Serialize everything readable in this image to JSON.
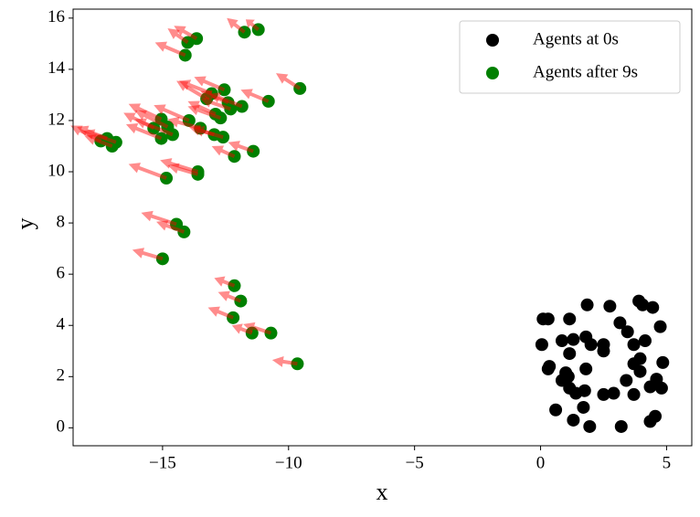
{
  "chart_data": {
    "type": "scatter",
    "xlabel": "x",
    "ylabel": "y",
    "xlim": [
      -18.55,
      6.0
    ],
    "ylim": [
      -0.7,
      16.35
    ],
    "xticks": [
      {
        "value": -15,
        "label": "−15"
      },
      {
        "value": -10,
        "label": "−10"
      },
      {
        "value": -5,
        "label": "−5"
      },
      0,
      5
    ],
    "yticks": [
      0,
      2,
      4,
      6,
      8,
      10,
      12,
      14,
      16
    ],
    "legend": "upper right",
    "series": [
      {
        "name": "Agents at 0s",
        "color": "#000000",
        "x": [
          0.1,
          0.3,
          0.05,
          0.35,
          0.3,
          0.6,
          0.85,
          1.15,
          1.85,
          2.75,
          3.9,
          4.05,
          4.45,
          4.75,
          3.15,
          3.45,
          4.15,
          1.8,
          2.0,
          1.3,
          1.15,
          2.5,
          2.5,
          3.7,
          3.95,
          3.7,
          4.85,
          1.8,
          1.0,
          1.1,
          0.85,
          3.95,
          4.6,
          3.4,
          1.15,
          1.4,
          1.75,
          2.5,
          2.9,
          3.7,
          4.35,
          4.8,
          1.7,
          1.3,
          1.95,
          3.2,
          4.35,
          4.55
        ],
        "values": [
          4.25,
          4.25,
          3.25,
          2.4,
          2.3,
          0.7,
          3.4,
          4.25,
          4.8,
          4.75,
          4.95,
          4.8,
          4.7,
          3.95,
          4.1,
          3.75,
          3.4,
          3.55,
          3.25,
          3.45,
          2.9,
          3.25,
          3.0,
          3.25,
          2.7,
          2.5,
          2.55,
          2.3,
          2.15,
          2.0,
          1.85,
          2.2,
          1.9,
          1.85,
          1.55,
          1.35,
          1.45,
          1.3,
          1.35,
          1.3,
          1.6,
          1.55,
          0.8,
          0.3,
          0.05,
          0.05,
          0.25,
          0.45
        ]
      },
      {
        "name": "Agents after 9s",
        "color": "#008000",
        "x": [
          -11.2,
          -11.75,
          -13.65,
          -14.0,
          -14.1,
          -9.55,
          -10.8,
          -12.55,
          -13.05,
          -13.25,
          -12.4,
          -11.85,
          -12.3,
          -12.9,
          -12.7,
          -13.95,
          -15.05,
          -15.35,
          -13.5,
          -14.8,
          -15.05,
          -14.6,
          -12.95,
          -12.6,
          -17.45,
          -17.2,
          -16.85,
          -17.0,
          -11.4,
          -12.15,
          -13.6,
          -13.6,
          -14.85,
          -14.45,
          -14.15,
          -15.0,
          -12.15,
          -11.9,
          -12.2,
          -10.7,
          -11.45,
          -9.65
        ],
        "values": [
          15.55,
          15.45,
          15.2,
          15.05,
          14.55,
          13.25,
          12.75,
          13.2,
          13.05,
          12.85,
          12.7,
          12.55,
          12.45,
          12.25,
          12.1,
          12.0,
          12.05,
          11.7,
          11.7,
          11.75,
          11.3,
          11.45,
          11.45,
          11.35,
          11.2,
          11.3,
          11.15,
          11.0,
          10.8,
          10.6,
          10.0,
          9.9,
          9.75,
          7.95,
          7.65,
          6.6,
          5.55,
          4.95,
          4.3,
          3.7,
          3.7,
          2.5
        ]
      }
    ],
    "quiver": {
      "color": "#ff0000",
      "u": [
        -0.5,
        -0.7,
        -0.9,
        -0.8,
        -1.2,
        -0.95,
        -1.1,
        -1.2,
        -1.3,
        -1.2,
        -1.1,
        -1.3,
        -1.2,
        -1.1,
        -1.3,
        -1.4,
        -1.3,
        -1.2,
        -1.3,
        -1.3,
        -1.4,
        -1.5,
        -1.0,
        -1.2,
        -1.2,
        -1.2,
        -1.3,
        -1.1,
        -1.0,
        -0.9,
        -1.5,
        -1.2,
        -1.5,
        -1.4,
        -1.1,
        -1.2,
        -0.8,
        -0.9,
        -1.0,
        -1.1,
        -0.8,
        -1.0
      ],
      "v": [
        0.4,
        0.55,
        0.5,
        0.55,
        0.5,
        0.6,
        0.45,
        0.5,
        0.5,
        0.7,
        0.45,
        0.5,
        0.4,
        0.5,
        0.45,
        0.6,
        0.6,
        0.6,
        0.35,
        0.65,
        0.55,
        0.6,
        0.3,
        0.35,
        0.6,
        0.45,
        0.45,
        0.4,
        0.35,
        0.4,
        0.45,
        0.35,
        0.55,
        0.45,
        0.4,
        0.35,
        0.3,
        0.35,
        0.4,
        0.35,
        0.3,
        0.15
      ]
    }
  }
}
